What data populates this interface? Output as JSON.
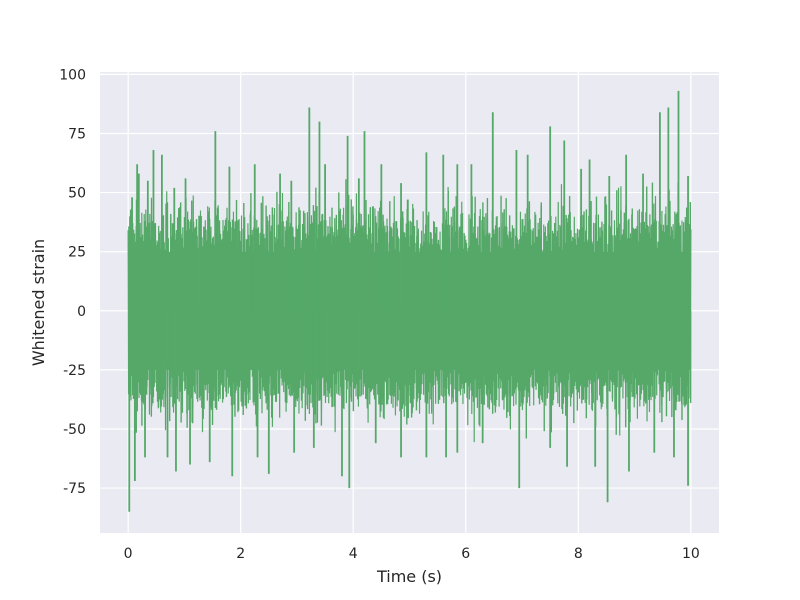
{
  "chart_data": {
    "type": "line",
    "title": "",
    "xlabel": "Time (s)",
    "ylabel": "Whitened strain",
    "xlim": [
      -0.5,
      10.5
    ],
    "ylim": [
      -94,
      101
    ],
    "xticks": [
      0,
      2,
      4,
      6,
      8,
      10
    ],
    "yticks": [
      -75,
      -50,
      -25,
      0,
      25,
      50,
      75,
      100
    ],
    "grid": true,
    "legend": "none",
    "background_color": "#eaeaf2",
    "grid_color": "#ffffff",
    "series": [
      {
        "color": "#55a868",
        "x_range": [
          0,
          10
        ],
        "envelope": {
          "lower": -35,
          "upper": 35
        },
        "peaks": [
          {
            "x": 0.02,
            "y": -85
          },
          {
            "x": 0.07,
            "y": 48
          },
          {
            "x": 0.16,
            "y": 62
          },
          {
            "x": 0.19,
            "y": 58
          },
          {
            "x": 0.35,
            "y": 55
          },
          {
            "x": 0.45,
            "y": 68
          },
          {
            "x": 0.6,
            "y": 66
          },
          {
            "x": 0.82,
            "y": 52
          },
          {
            "x": 1.02,
            "y": 56
          },
          {
            "x": 1.55,
            "y": 76
          },
          {
            "x": 1.8,
            "y": 61
          },
          {
            "x": 2.25,
            "y": 62
          },
          {
            "x": 2.7,
            "y": 58
          },
          {
            "x": 2.9,
            "y": 55
          },
          {
            "x": 3.22,
            "y": 86
          },
          {
            "x": 3.4,
            "y": 80
          },
          {
            "x": 3.5,
            "y": 62
          },
          {
            "x": 3.9,
            "y": 74
          },
          {
            "x": 4.1,
            "y": 56
          },
          {
            "x": 4.2,
            "y": 76
          },
          {
            "x": 4.5,
            "y": 62
          },
          {
            "x": 4.85,
            "y": 54
          },
          {
            "x": 5.3,
            "y": 67
          },
          {
            "x": 5.6,
            "y": 66
          },
          {
            "x": 5.85,
            "y": 62
          },
          {
            "x": 6.1,
            "y": 62
          },
          {
            "x": 6.48,
            "y": 84
          },
          {
            "x": 6.9,
            "y": 68
          },
          {
            "x": 7.1,
            "y": 66
          },
          {
            "x": 7.5,
            "y": 78
          },
          {
            "x": 7.75,
            "y": 72
          },
          {
            "x": 8.05,
            "y": 60
          },
          {
            "x": 8.2,
            "y": 64
          },
          {
            "x": 8.55,
            "y": 57
          },
          {
            "x": 8.85,
            "y": 66
          },
          {
            "x": 9.15,
            "y": 58
          },
          {
            "x": 9.45,
            "y": 84
          },
          {
            "x": 9.6,
            "y": 86
          },
          {
            "x": 9.78,
            "y": 93
          },
          {
            "x": 9.95,
            "y": 57
          },
          {
            "x": 0.12,
            "y": -72
          },
          {
            "x": 0.3,
            "y": -62
          },
          {
            "x": 0.7,
            "y": -62
          },
          {
            "x": 0.85,
            "y": -68
          },
          {
            "x": 1.1,
            "y": -65
          },
          {
            "x": 1.45,
            "y": -64
          },
          {
            "x": 1.85,
            "y": -70
          },
          {
            "x": 2.3,
            "y": -62
          },
          {
            "x": 2.5,
            "y": -69
          },
          {
            "x": 2.95,
            "y": -60
          },
          {
            "x": 3.3,
            "y": -58
          },
          {
            "x": 3.8,
            "y": -70
          },
          {
            "x": 3.93,
            "y": -75
          },
          {
            "x": 4.4,
            "y": -56
          },
          {
            "x": 4.85,
            "y": -62
          },
          {
            "x": 5.3,
            "y": -62
          },
          {
            "x": 5.65,
            "y": -62
          },
          {
            "x": 5.85,
            "y": -60
          },
          {
            "x": 6.3,
            "y": -56
          },
          {
            "x": 6.95,
            "y": -75
          },
          {
            "x": 7.5,
            "y": -58
          },
          {
            "x": 7.8,
            "y": -66
          },
          {
            "x": 8.3,
            "y": -66
          },
          {
            "x": 8.52,
            "y": -81
          },
          {
            "x": 8.9,
            "y": -68
          },
          {
            "x": 9.35,
            "y": -60
          },
          {
            "x": 9.7,
            "y": -62
          },
          {
            "x": 9.95,
            "y": -74
          }
        ]
      }
    ]
  }
}
